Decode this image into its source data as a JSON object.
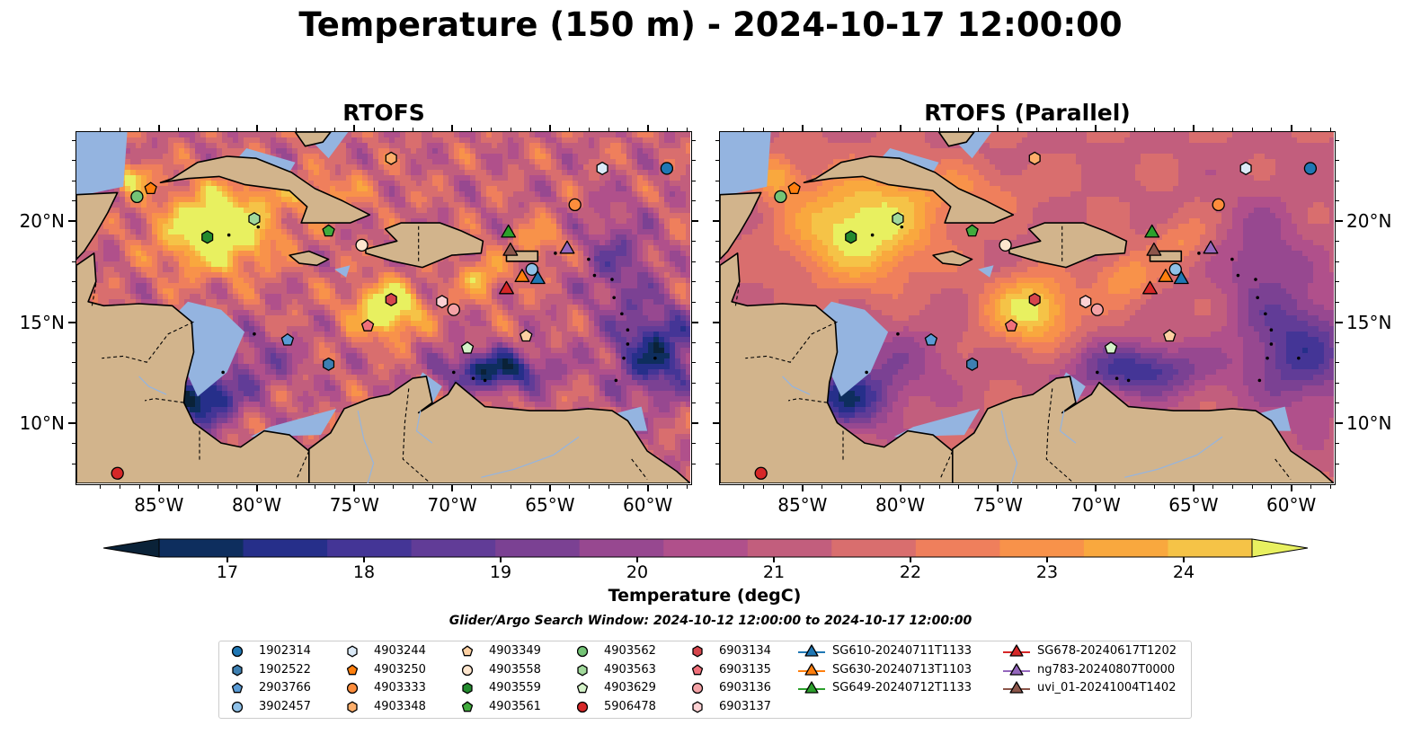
{
  "title": "Temperature (150 m) - 2024-10-17 12:00:00",
  "panels": [
    {
      "id": "rtofs",
      "title": "RTOFS"
    },
    {
      "id": "parallel",
      "title": "RTOFS (Parallel)"
    }
  ],
  "map": {
    "lon_range": [
      -89.2,
      -57.8
    ],
    "lat_range": [
      7.0,
      24.4
    ],
    "lon_ticks": [
      "85°W",
      "80°W",
      "75°W",
      "70°W",
      "65°W",
      "60°W"
    ],
    "lat_ticks": [
      "20°N",
      "15°N",
      "10°N"
    ],
    "land_color": "#d2b48c",
    "shelf_color": "#94b4e0",
    "coast_color": "#000000"
  },
  "colorbar": {
    "label": "Temperature (degC)",
    "ticks": [
      "17",
      "18",
      "19",
      "20",
      "21",
      "22",
      "23",
      "24"
    ],
    "range": [
      16.5,
      24.5
    ],
    "colors": [
      "#0a2238",
      "#0e2e5e",
      "#262f8a",
      "#443596",
      "#613c97",
      "#7b4193",
      "#974890",
      "#b0508b",
      "#c25e7d",
      "#d96e6e",
      "#ef7f5c",
      "#f8924a",
      "#f9a83e",
      "#f5c347",
      "#e8f060"
    ]
  },
  "search_window": "Glider/Argo Search Window: 2024-10-12 12:00:00 to 2024-10-17 12:00:00",
  "legend": {
    "argo": [
      {
        "label": "1902314",
        "shape": "circle",
        "color": "#1f77b4"
      },
      {
        "label": "1902522",
        "shape": "hexagon",
        "color": "#3d7fb1"
      },
      {
        "label": "2903766",
        "shape": "pentagon",
        "color": "#5a9bd5"
      },
      {
        "label": "3902457",
        "shape": "circle",
        "color": "#8fc1e8"
      },
      {
        "label": "4903244",
        "shape": "hexagon",
        "color": "#dbeaf8"
      },
      {
        "label": "4903250",
        "shape": "pentagon",
        "color": "#ff7f0e"
      },
      {
        "label": "4903333",
        "shape": "circle",
        "color": "#fd8d3c"
      },
      {
        "label": "4903348",
        "shape": "hexagon",
        "color": "#fdae6b"
      },
      {
        "label": "4903349",
        "shape": "pentagon",
        "color": "#fdd0a2"
      },
      {
        "label": "4903558",
        "shape": "circle",
        "color": "#fee6ce"
      },
      {
        "label": "4903559",
        "shape": "hexagon",
        "color": "#238b2e"
      },
      {
        "label": "4903561",
        "shape": "pentagon",
        "color": "#41ab3d"
      },
      {
        "label": "4903562",
        "shape": "circle",
        "color": "#74c476"
      },
      {
        "label": "4903563",
        "shape": "hexagon",
        "color": "#a1d99b"
      },
      {
        "label": "4903629",
        "shape": "pentagon",
        "color": "#d4f2c8"
      },
      {
        "label": "5906478",
        "shape": "circle",
        "color": "#d62728"
      },
      {
        "label": "6903134",
        "shape": "hexagon",
        "color": "#d6454c"
      },
      {
        "label": "6903135",
        "shape": "pentagon",
        "color": "#f0707a"
      },
      {
        "label": "6903136",
        "shape": "circle",
        "color": "#f4a2a6"
      },
      {
        "label": "6903137",
        "shape": "hexagon",
        "color": "#fcd1d3"
      }
    ],
    "gliders": [
      {
        "label": "SG610-20240711T1133",
        "color": "#1f77b4"
      },
      {
        "label": "SG630-20240713T1103",
        "color": "#ff7f0e"
      },
      {
        "label": "SG649-20240712T1133",
        "color": "#2ca02c"
      },
      {
        "label": "SG678-20240617T1202",
        "color": "#d62728"
      },
      {
        "label": "ng783-20240807T0000",
        "color": "#9467bd"
      },
      {
        "label": "uvi_01-20241004T1402",
        "color": "#8c564b"
      }
    ]
  },
  "floats": [
    {
      "id": "1902314",
      "lon": -59.0,
      "lat": 22.6
    },
    {
      "id": "1902522",
      "lon": -76.3,
      "lat": 12.9
    },
    {
      "id": "2903766",
      "lon": -78.4,
      "lat": 14.1
    },
    {
      "id": "3902457",
      "lon": -65.9,
      "lat": 17.6
    },
    {
      "id": "4903244",
      "lon": -62.3,
      "lat": 22.6
    },
    {
      "id": "4903250",
      "lon": -85.4,
      "lat": 21.6
    },
    {
      "id": "4903333",
      "lon": -63.7,
      "lat": 20.8
    },
    {
      "id": "4903348",
      "lon": -73.1,
      "lat": 23.1
    },
    {
      "id": "4903349",
      "lon": -66.2,
      "lat": 14.3
    },
    {
      "id": "4903558",
      "lon": -74.6,
      "lat": 18.8
    },
    {
      "id": "4903559",
      "lon": -82.5,
      "lat": 19.2
    },
    {
      "id": "4903561",
      "lon": -76.3,
      "lat": 19.5
    },
    {
      "id": "4903562",
      "lon": -86.1,
      "lat": 21.2
    },
    {
      "id": "4903563",
      "lon": -80.1,
      "lat": 20.1
    },
    {
      "id": "4903629",
      "lon": -69.2,
      "lat": 13.7
    },
    {
      "id": "5906478",
      "lon": -87.1,
      "lat": 7.5
    },
    {
      "id": "6903134",
      "lon": -73.1,
      "lat": 16.1
    },
    {
      "id": "6903135",
      "lon": -74.3,
      "lat": 14.8
    },
    {
      "id": "6903136",
      "lon": -69.9,
      "lat": 15.6
    },
    {
      "id": "6903137",
      "lon": -70.5,
      "lat": 16.0
    }
  ],
  "glider_positions": [
    {
      "id": "SG610-20240711T1133",
      "lon": -65.6,
      "lat": 17.1
    },
    {
      "id": "SG630-20240713T1103",
      "lon": -66.4,
      "lat": 17.2
    },
    {
      "id": "SG649-20240712T1133",
      "lon": -67.1,
      "lat": 19.4
    },
    {
      "id": "SG678-20240617T1202",
      "lon": -67.2,
      "lat": 16.6
    },
    {
      "id": "ng783-20240807T0000",
      "lon": -64.1,
      "lat": 18.6
    },
    {
      "id": "uvi_01-20241004T1402",
      "lon": -67.0,
      "lat": 18.5
    }
  ]
}
